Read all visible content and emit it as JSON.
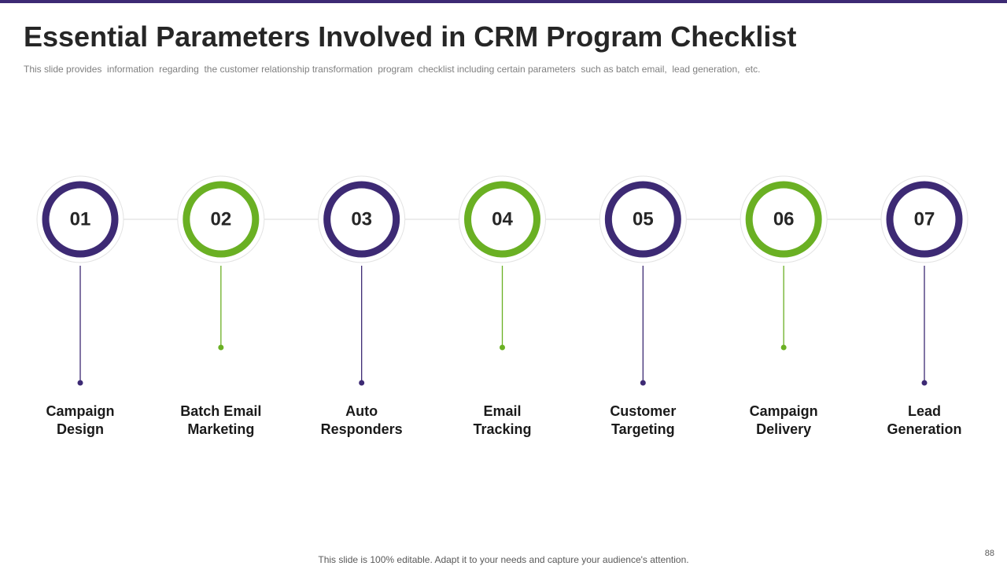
{
  "header": {
    "title": "Essential Parameters Involved in CRM Program Checklist",
    "subtitle": "This slide provides  information  regarding  the customer relationship transformation  program  checklist including certain parameters  such as batch email,  lead generation,  etc."
  },
  "steps": [
    {
      "number": "01",
      "label": "Campaign Design"
    },
    {
      "number": "02",
      "label": "Batch Email Marketing"
    },
    {
      "number": "03",
      "label": "Auto Responders"
    },
    {
      "number": "04",
      "label": "Email Tracking"
    },
    {
      "number": "05",
      "label": "Customer Targeting"
    },
    {
      "number": "06",
      "label": "Campaign Delivery"
    },
    {
      "number": "07",
      "label": "Lead Generation"
    }
  ],
  "footer": {
    "note": "This slide is 100% editable. Adapt it to your needs and capture your audience's attention.",
    "page_number": "88"
  }
}
